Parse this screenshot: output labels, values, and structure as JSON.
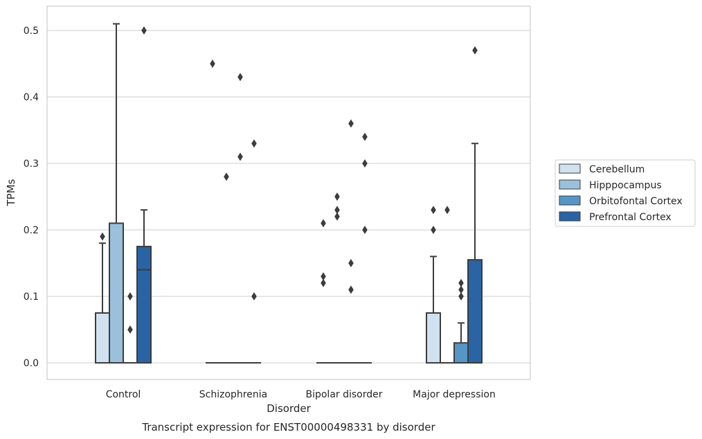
{
  "caption": "Transcript expression for ENST00000498331 by disorder",
  "chart_data": {
    "type": "box",
    "xlabel": "Disorder",
    "ylabel": "TPMs",
    "ylim": [
      -0.025,
      0.537
    ],
    "yticks": [
      "0.0",
      "0.1",
      "0.2",
      "0.3",
      "0.4",
      "0.5"
    ],
    "categories": [
      "Control",
      "Schizophrenia",
      "Bipolar disorder",
      "Major depression"
    ],
    "grid": true,
    "legend_position": "right",
    "series": [
      {
        "name": "Cerebellum",
        "color": "#d0e1f0",
        "boxes": [
          {
            "q1": 0,
            "median": 0,
            "q3": 0.075,
            "whisker_low": 0,
            "whisker_high": 0.18,
            "outliers": [
              0.19
            ]
          },
          {
            "q1": 0,
            "median": 0,
            "q3": 0,
            "whisker_low": 0,
            "whisker_high": 0,
            "outliers": [
              0.45
            ]
          },
          {
            "q1": 0,
            "median": 0,
            "q3": 0,
            "whisker_low": 0,
            "whisker_high": 0,
            "outliers": [
              0.21,
              0.13,
              0.12
            ]
          },
          {
            "q1": 0,
            "median": 0,
            "q3": 0.075,
            "whisker_low": 0,
            "whisker_high": 0.16,
            "outliers": [
              0.23,
              0.2
            ]
          }
        ]
      },
      {
        "name": "Hipppocampus",
        "color": "#9ac0dc",
        "boxes": [
          {
            "q1": 0,
            "median": 0,
            "q3": 0.21,
            "whisker_low": 0,
            "whisker_high": 0.51,
            "outliers": []
          },
          {
            "q1": 0,
            "median": 0,
            "q3": 0,
            "whisker_low": 0,
            "whisker_high": 0,
            "outliers": [
              0.28
            ]
          },
          {
            "q1": 0,
            "median": 0,
            "q3": 0,
            "whisker_low": 0,
            "whisker_high": 0,
            "outliers": [
              0.25,
              0.23,
              0.22
            ]
          },
          {
            "q1": 0,
            "median": 0,
            "q3": 0,
            "whisker_low": 0,
            "whisker_high": 0,
            "outliers": [
              0.23
            ]
          }
        ]
      },
      {
        "name": "Orbitofontal Cortex",
        "color": "#5596c6",
        "boxes": [
          {
            "q1": 0,
            "median": 0,
            "q3": 0,
            "whisker_low": 0,
            "whisker_high": 0,
            "outliers": [
              0.1,
              0.05
            ]
          },
          {
            "q1": 0,
            "median": 0,
            "q3": 0,
            "whisker_low": 0,
            "whisker_high": 0,
            "outliers": [
              0.43,
              0.31
            ]
          },
          {
            "q1": 0,
            "median": 0,
            "q3": 0,
            "whisker_low": 0,
            "whisker_high": 0,
            "outliers": [
              0.36,
              0.15,
              0.11
            ]
          },
          {
            "q1": 0,
            "median": 0,
            "q3": 0.03,
            "whisker_low": 0,
            "whisker_high": 0.06,
            "outliers": [
              0.12,
              0.11,
              0.1
            ]
          }
        ]
      },
      {
        "name": "Prefrontal Cortex",
        "color": "#2a64a4",
        "boxes": [
          {
            "q1": 0,
            "median": 0.14,
            "q3": 0.175,
            "whisker_low": 0,
            "whisker_high": 0.23,
            "outliers": [
              0.5
            ]
          },
          {
            "q1": 0,
            "median": 0,
            "q3": 0,
            "whisker_low": 0,
            "whisker_high": 0,
            "outliers": [
              0.33,
              0.1
            ]
          },
          {
            "q1": 0,
            "median": 0,
            "q3": 0,
            "whisker_low": 0,
            "whisker_high": 0,
            "outliers": [
              0.34,
              0.3,
              0.2
            ]
          },
          {
            "q1": 0,
            "median": 0,
            "q3": 0.155,
            "whisker_low": 0,
            "whisker_high": 0.33,
            "outliers": [
              0.47
            ]
          }
        ]
      }
    ]
  }
}
